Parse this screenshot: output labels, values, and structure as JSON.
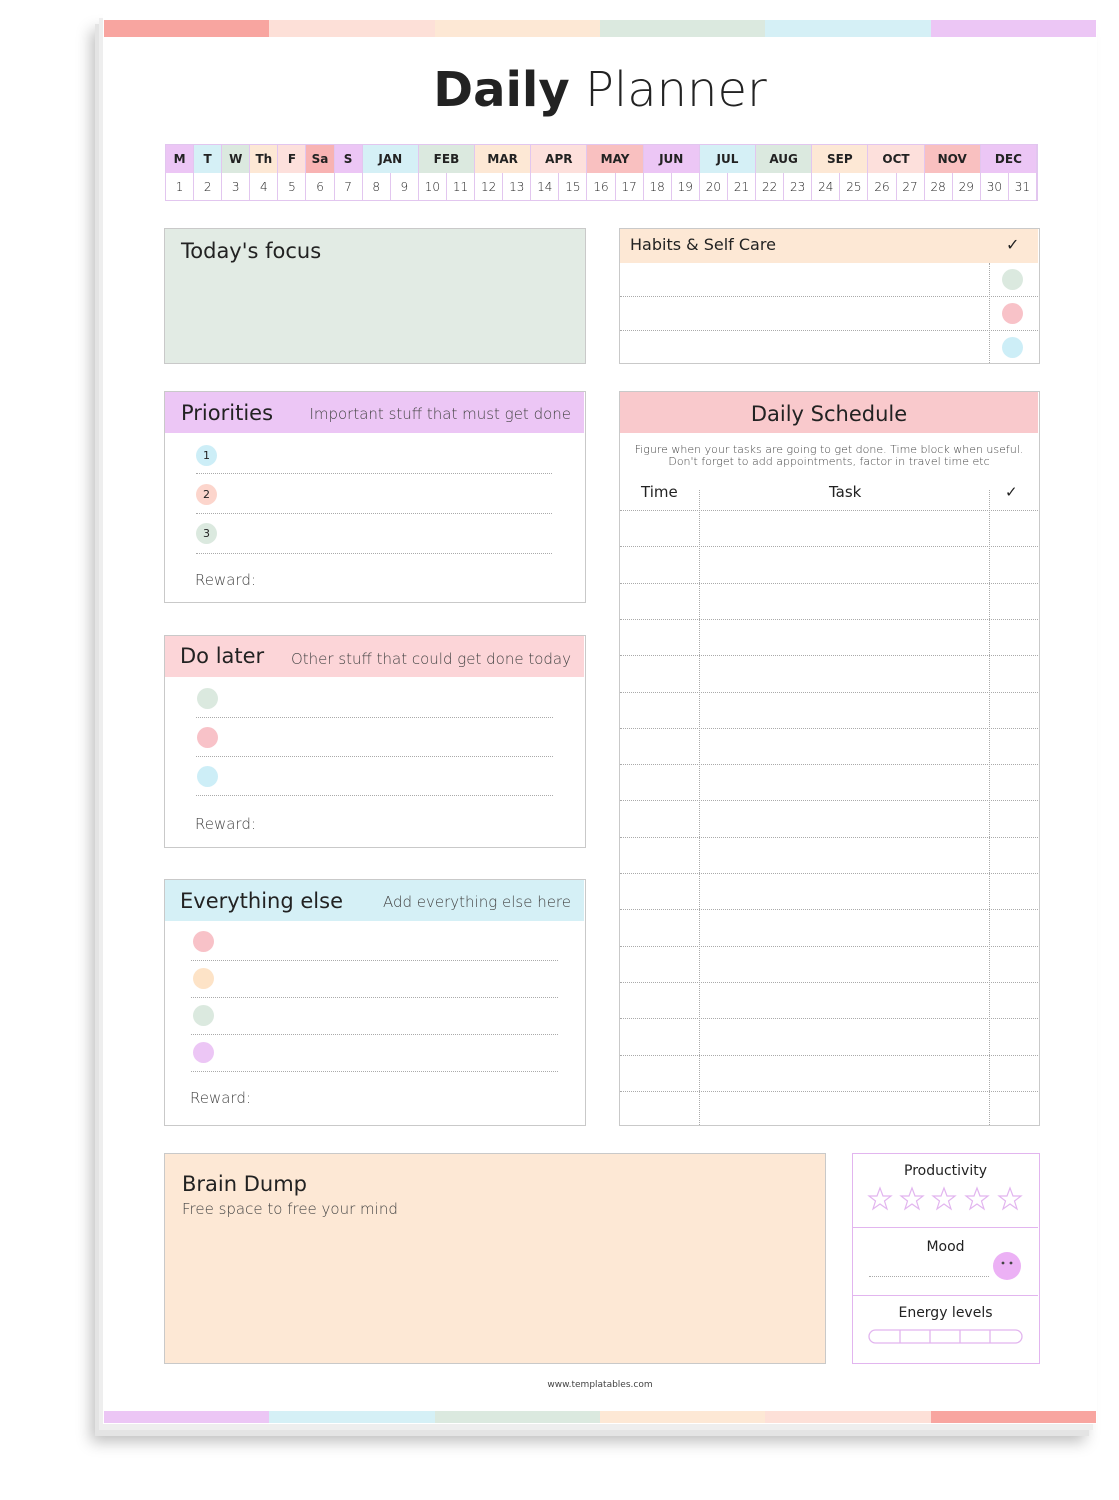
{
  "title": {
    "bold": "Daily",
    "regular": "Planner"
  },
  "calendar": {
    "weekdays": [
      "M",
      "T",
      "W",
      "Th",
      "F",
      "Sa",
      "S"
    ],
    "months": [
      "JAN",
      "FEB",
      "MAR",
      "APR",
      "MAY",
      "JUN",
      "JUL",
      "AUG",
      "SEP",
      "OCT",
      "NOV",
      "DEC"
    ],
    "days": [
      1,
      2,
      3,
      4,
      5,
      6,
      7,
      8,
      9,
      10,
      11,
      12,
      13,
      14,
      15,
      16,
      17,
      18,
      19,
      20,
      21,
      22,
      23,
      24,
      25,
      26,
      27,
      28,
      29,
      30,
      31
    ]
  },
  "focus": {
    "title": "Today's focus"
  },
  "habits": {
    "title": "Habits & Self Care",
    "check": "✓"
  },
  "priorities": {
    "title": "Priorities",
    "subtitle": "Important stuff that must get done",
    "items": [
      1,
      2,
      3
    ],
    "reward": "Reward:"
  },
  "do_later": {
    "title": "Do later",
    "subtitle": "Other stuff that could get done today",
    "reward": "Reward:"
  },
  "everything_else": {
    "title": "Everything else",
    "subtitle": "Add everything else here",
    "reward": "Reward:"
  },
  "schedule": {
    "title": "Daily Schedule",
    "note": [
      "Figure when your tasks are going to get done. Time block when useful.",
      "Don't forget to add appointments, factor in travel time etc"
    ],
    "columns": [
      "Time",
      "Task",
      "✓"
    ]
  },
  "brain_dump": {
    "title": "Brain Dump",
    "subtitle": "Free space to free your mind"
  },
  "ratings": {
    "productivity": "Productivity",
    "mood": "Mood",
    "energy": "Energy levels"
  },
  "footer": "www.templatables.com"
}
